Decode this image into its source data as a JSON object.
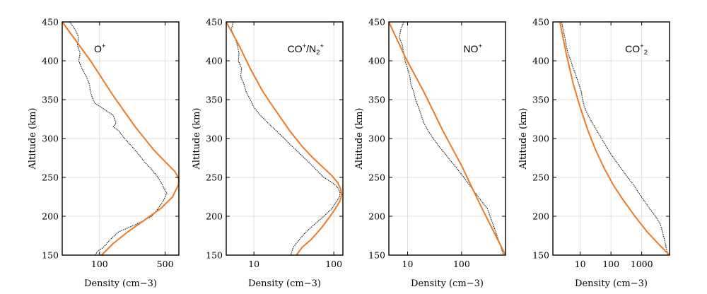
{
  "chart_data": [
    {
      "type": "line",
      "title": "O+",
      "xscale": "log",
      "xlim": [
        40,
        700
      ],
      "ylim": [
        150,
        450
      ],
      "xlabel": "Density (cm−3)",
      "ylabel": "Altitude (km)",
      "xticks": [
        100,
        500
      ],
      "yticks": [
        150,
        200,
        250,
        300,
        350,
        400,
        450
      ],
      "grid": true,
      "series": [
        {
          "color": "#1a1a1a",
          "style": "dotted",
          "x": [
            48,
            55,
            60,
            58,
            62,
            60,
            65,
            72,
            78,
            80,
            85,
            90,
            105,
            120,
            140,
            150,
            140,
            160,
            185,
            220,
            260,
            300,
            360,
            420,
            470,
            490,
            520,
            480,
            420,
            360,
            300,
            250,
            200,
            160,
            130,
            110,
            95,
            90
          ],
          "y": [
            450,
            440,
            430,
            420,
            410,
            400,
            390,
            380,
            370,
            360,
            350,
            345,
            340,
            335,
            330,
            320,
            315,
            310,
            300,
            290,
            280,
            270,
            260,
            250,
            240,
            235,
            230,
            220,
            210,
            200,
            195,
            190,
            185,
            180,
            170,
            160,
            155,
            150
          ]
        },
        {
          "color": "#f07a24",
          "style": "solid",
          "x": [
            40,
            80,
            140,
            240,
            380,
            520,
            630,
            690,
            700,
            690,
            600,
            450,
            300,
            200,
            140,
            105
          ],
          "y": [
            450,
            400,
            355,
            315,
            285,
            268,
            258,
            250,
            245,
            240,
            225,
            210,
            195,
            180,
            165,
            150
          ]
        }
      ]
    },
    {
      "type": "line",
      "title": "CO+/N2+",
      "title_parts": [
        "CO",
        "+",
        "/N",
        "2",
        "+"
      ],
      "xscale": "log",
      "xlim": [
        4.5,
        130
      ],
      "ylim": [
        150,
        450
      ],
      "xlabel": "Density (cm−3)",
      "ylabel": "Altitude (km)",
      "xticks": [
        10,
        100
      ],
      "yticks": [
        150,
        200,
        250,
        300,
        350,
        400,
        450
      ],
      "grid": true,
      "series": [
        {
          "color": "#1a1a1a",
          "style": "dotted",
          "x": [
            5.5,
            5.2,
            5.8,
            6.2,
            6.5,
            6.4,
            7,
            6.8,
            7.5,
            8,
            9,
            10,
            12,
            15,
            19,
            24,
            30,
            38,
            48,
            60,
            75,
            90,
            105,
            115,
            120,
            118,
            110,
            95,
            75,
            58,
            45,
            37,
            31,
            29
          ],
          "y": [
            450,
            440,
            430,
            420,
            410,
            400,
            390,
            380,
            370,
            360,
            350,
            340,
            330,
            320,
            310,
            300,
            290,
            280,
            270,
            260,
            250,
            245,
            240,
            235,
            230,
            225,
            220,
            210,
            200,
            190,
            180,
            170,
            160,
            150
          ]
        },
        {
          "color": "#f07a24",
          "style": "solid",
          "x": [
            4.5,
            6.5,
            9,
            13,
            19,
            28,
            40,
            55,
            75,
            95,
            112,
            122,
            125,
            120,
            108,
            90,
            70,
            52,
            40,
            34
          ],
          "y": [
            450,
            420,
            390,
            360,
            335,
            310,
            290,
            275,
            262,
            252,
            243,
            235,
            228,
            220,
            212,
            200,
            185,
            170,
            160,
            150
          ]
        }
      ]
    },
    {
      "type": "line",
      "title": "NO+",
      "xscale": "log",
      "xlim": [
        4.5,
        650
      ],
      "ylim": [
        150,
        450
      ],
      "xlabel": "Density (cm−3)",
      "ylabel": "Altitude (km)",
      "xticks": [
        10,
        100
      ],
      "yticks": [
        150,
        200,
        250,
        300,
        350,
        400,
        450
      ],
      "grid": true,
      "series": [
        {
          "color": "#1a1a1a",
          "style": "dotted",
          "x": [
            8.5,
            7.5,
            7,
            8,
            8.5,
            9,
            10,
            11,
            11.5,
            13,
            14,
            16,
            20,
            24,
            30,
            38,
            50,
            65,
            85,
            110,
            140,
            180,
            230,
            300,
            380,
            480,
            600
          ],
          "y": [
            450,
            440,
            430,
            420,
            410,
            400,
            390,
            380,
            370,
            360,
            350,
            340,
            320,
            310,
            300,
            290,
            280,
            270,
            260,
            250,
            240,
            230,
            220,
            210,
            190,
            170,
            150
          ]
        },
        {
          "color": "#f07a24",
          "style": "solid",
          "x": [
            4.5,
            9,
            20,
            45,
            100,
            220,
            650
          ],
          "y": [
            450,
            405,
            360,
            310,
            265,
            215,
            150
          ]
        }
      ]
    },
    {
      "type": "line",
      "title": "CO2+",
      "title_parts": [
        "CO",
        "+",
        "2"
      ],
      "xscale": "log",
      "xlim": [
        1.3,
        8000
      ],
      "ylim": [
        150,
        450
      ],
      "xlabel": "Density (cm−3)",
      "ylabel": "Altitude (km)",
      "xticks": [
        10,
        100,
        1000
      ],
      "yticks": [
        150,
        200,
        250,
        300,
        350,
        400,
        450
      ],
      "grid": true,
      "series": [
        {
          "color": "#1a1a1a",
          "style": "dotted",
          "x": [
            2.5,
            2.8,
            3.2,
            3.5,
            4,
            5,
            6,
            7.5,
            9,
            11,
            12,
            14,
            18,
            25,
            35,
            50,
            70,
            100,
            150,
            230,
            350,
            550,
            800,
            1200,
            1800,
            2800,
            4000,
            5500,
            7000
          ],
          "y": [
            450,
            440,
            430,
            420,
            410,
            400,
            390,
            380,
            370,
            360,
            350,
            340,
            330,
            320,
            310,
            300,
            290,
            280,
            270,
            260,
            250,
            240,
            230,
            220,
            210,
            200,
            190,
            170,
            150
          ]
        },
        {
          "color": "#f07a24",
          "style": "solid",
          "x": [
            2.2,
            3.5,
            6,
            10,
            18,
            32,
            60,
            120,
            260,
            600,
            1500,
            4000,
            8000
          ],
          "y": [
            450,
            410,
            370,
            340,
            310,
            285,
            262,
            240,
            220,
            200,
            180,
            162,
            150
          ]
        }
      ]
    }
  ]
}
